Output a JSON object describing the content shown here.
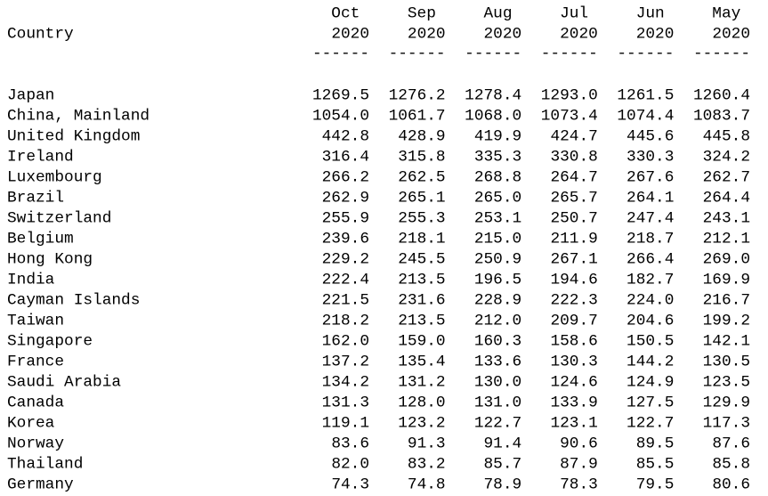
{
  "table": {
    "header": {
      "country": "Country",
      "columns": [
        {
          "month": "Oct",
          "year": "2020",
          "rule": "------"
        },
        {
          "month": "Sep",
          "year": "2020",
          "rule": "------"
        },
        {
          "month": "Aug",
          "year": "2020",
          "rule": "------"
        },
        {
          "month": "Jul",
          "year": "2020",
          "rule": "------"
        },
        {
          "month": "Jun",
          "year": "2020",
          "rule": "------"
        },
        {
          "month": "May",
          "year": "2020",
          "rule": "------"
        }
      ]
    },
    "rows": [
      [
        "Japan",
        "1269.5",
        "1276.2",
        "1278.4",
        "1293.0",
        "1261.5",
        "1260.4"
      ],
      [
        "China, Mainland",
        "1054.0",
        "1061.7",
        "1068.0",
        "1073.4",
        "1074.4",
        "1083.7"
      ],
      [
        "United Kingdom",
        "442.8",
        "428.9",
        "419.9",
        "424.7",
        "445.6",
        "445.8"
      ],
      [
        "Ireland",
        "316.4",
        "315.8",
        "335.3",
        "330.8",
        "330.3",
        "324.2"
      ],
      [
        "Luxembourg",
        "266.2",
        "262.5",
        "268.8",
        "264.7",
        "267.6",
        "262.7"
      ],
      [
        "Brazil",
        "262.9",
        "265.1",
        "265.0",
        "265.7",
        "264.1",
        "264.4"
      ],
      [
        "Switzerland",
        "255.9",
        "255.3",
        "253.1",
        "250.7",
        "247.4",
        "243.1"
      ],
      [
        "Belgium",
        "239.6",
        "218.1",
        "215.0",
        "211.9",
        "218.7",
        "212.1"
      ],
      [
        "Hong Kong",
        "229.2",
        "245.5",
        "250.9",
        "267.1",
        "266.4",
        "269.0"
      ],
      [
        "India",
        "222.4",
        "213.5",
        "196.5",
        "194.6",
        "182.7",
        "169.9"
      ],
      [
        "Cayman Islands",
        "221.5",
        "231.6",
        "228.9",
        "222.3",
        "224.0",
        "216.7"
      ],
      [
        "Taiwan",
        "218.2",
        "213.5",
        "212.0",
        "209.7",
        "204.6",
        "199.2"
      ],
      [
        "Singapore",
        "162.0",
        "159.0",
        "160.3",
        "158.6",
        "150.5",
        "142.1"
      ],
      [
        "France",
        "137.2",
        "135.4",
        "133.6",
        "130.3",
        "144.2",
        "130.5"
      ],
      [
        "Saudi Arabia",
        "134.2",
        "131.2",
        "130.0",
        "124.6",
        "124.9",
        "123.5"
      ],
      [
        "Canada",
        "131.3",
        "128.0",
        "131.0",
        "133.9",
        "127.5",
        "129.9"
      ],
      [
        "Korea",
        "119.1",
        "123.2",
        "122.7",
        "123.1",
        "122.7",
        "117.3"
      ],
      [
        "Norway",
        "83.6",
        "91.3",
        "91.4",
        "90.6",
        "89.5",
        "87.6"
      ],
      [
        "Thailand",
        "82.0",
        "83.2",
        "85.7",
        "87.9",
        "85.5",
        "85.8"
      ],
      [
        "Germany",
        "74.3",
        "74.8",
        "78.9",
        "78.3",
        "79.5",
        "80.6"
      ]
    ]
  }
}
